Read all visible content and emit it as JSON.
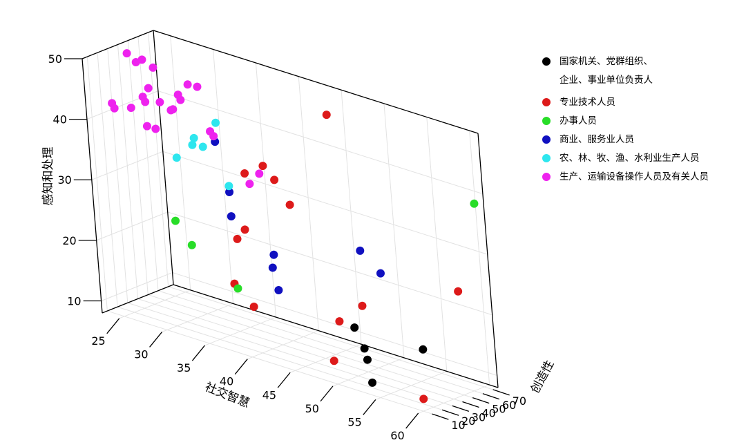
{
  "chart_data": {
    "type": "scatter3d",
    "xlabel": "社交智慧",
    "ylabel": "创造性",
    "zlabel": "感知和处理",
    "x_ticks": [
      25,
      30,
      35,
      40,
      45,
      50,
      55,
      60
    ],
    "y_ticks": [
      10,
      20,
      30,
      40,
      50,
      60,
      70
    ],
    "z_ticks": [
      10,
      20,
      30,
      40,
      50
    ],
    "xlim": [
      23,
      61
    ],
    "ylim": [
      5,
      75
    ],
    "zlim": [
      8,
      50
    ],
    "grid": true,
    "legend_position": "right",
    "series": [
      {
        "name": "国家机关、党群组织、企业、事业单位负责人",
        "name_lines": [
          "国家机关、党群组织、",
          "企业、事业单位负责人"
        ],
        "color": "#000000",
        "points": [
          {
            "x": 50,
            "y": 30,
            "z": 16
          },
          {
            "x": 51,
            "y": 30,
            "z": 13
          },
          {
            "x": 51,
            "y": 32,
            "z": 11
          },
          {
            "x": 52,
            "y": 27,
            "z": 8
          },
          {
            "x": 56,
            "y": 46,
            "z": 14
          }
        ]
      },
      {
        "name": "专业技术人员",
        "color": "#dd1a1a",
        "points": [
          {
            "x": 44,
            "y": 67,
            "z": 46
          },
          {
            "x": 38,
            "y": 50,
            "z": 36
          },
          {
            "x": 36,
            "y": 48,
            "z": 34
          },
          {
            "x": 39,
            "y": 52,
            "z": 34
          },
          {
            "x": 40,
            "y": 57,
            "z": 30
          },
          {
            "x": 35,
            "y": 52,
            "z": 24
          },
          {
            "x": 34,
            "y": 52,
            "z": 22
          },
          {
            "x": 35,
            "y": 38,
            "z": 16
          },
          {
            "x": 38,
            "y": 31,
            "z": 14
          },
          {
            "x": 49,
            "y": 47,
            "z": 18
          },
          {
            "x": 48,
            "y": 32,
            "z": 16
          },
          {
            "x": 49,
            "y": 16,
            "z": 11
          },
          {
            "x": 59,
            "y": 60,
            "z": 24
          },
          {
            "x": 58,
            "y": 27,
            "z": 8
          }
        ]
      },
      {
        "name": "办事人员",
        "color": "#28dd28",
        "points": [
          {
            "x": 27,
            "y": 50,
            "z": 22
          },
          {
            "x": 30,
            "y": 40,
            "z": 20
          },
          {
            "x": 36,
            "y": 33,
            "z": 16
          },
          {
            "x": 60,
            "y": 74,
            "z": 38
          }
        ]
      },
      {
        "name": "商业、服务业人员",
        "color": "#1010c0",
        "points": [
          {
            "x": 34,
            "y": 38,
            "z": 39
          },
          {
            "x": 35,
            "y": 40,
            "z": 31
          },
          {
            "x": 35,
            "y": 40,
            "z": 27
          },
          {
            "x": 41,
            "y": 30,
            "z": 24
          },
          {
            "x": 41,
            "y": 28,
            "z": 22
          },
          {
            "x": 42,
            "y": 24,
            "z": 19
          },
          {
            "x": 48,
            "y": 57,
            "z": 26
          },
          {
            "x": 51,
            "y": 51,
            "z": 24
          }
        ]
      },
      {
        "name": "农、林、牧、渔、水利业生产人员",
        "color": "#2ee6ee",
        "points": [
          {
            "x": 34,
            "y": 40,
            "z": 42
          },
          {
            "x": 31,
            "y": 42,
            "z": 38
          },
          {
            "x": 32,
            "y": 42,
            "z": 37
          },
          {
            "x": 31,
            "y": 40,
            "z": 37
          },
          {
            "x": 29,
            "y": 40,
            "z": 34
          },
          {
            "x": 35,
            "y": 40,
            "z": 32
          }
        ]
      },
      {
        "name": "生产、运输设备操作人员及有关人员",
        "color": "#ee22ee",
        "points": [
          {
            "x": 24,
            "y": 40,
            "z": 49
          },
          {
            "x": 25,
            "y": 46,
            "z": 48
          },
          {
            "x": 24,
            "y": 48,
            "z": 47
          },
          {
            "x": 30,
            "y": 48,
            "z": 46
          },
          {
            "x": 31,
            "y": 49,
            "z": 46
          },
          {
            "x": 26,
            "y": 48,
            "z": 47
          },
          {
            "x": 26,
            "y": 42,
            "z": 44
          },
          {
            "x": 29,
            "y": 46,
            "z": 44
          },
          {
            "x": 25,
            "y": 44,
            "z": 42
          },
          {
            "x": 27,
            "y": 44,
            "z": 42
          },
          {
            "x": 29,
            "y": 48,
            "z": 43
          },
          {
            "x": 28,
            "y": 46,
            "z": 41
          },
          {
            "x": 28,
            "y": 48,
            "z": 41
          },
          {
            "x": 26,
            "y": 38,
            "z": 42
          },
          {
            "x": 22,
            "y": 38,
            "z": 40
          },
          {
            "x": 23,
            "y": 32,
            "z": 40
          },
          {
            "x": 24,
            "y": 40,
            "z": 40
          },
          {
            "x": 26,
            "y": 38,
            "z": 38
          },
          {
            "x": 27,
            "y": 38,
            "z": 38
          },
          {
            "x": 33,
            "y": 42,
            "z": 40
          },
          {
            "x": 33,
            "y": 45,
            "z": 39
          },
          {
            "x": 36,
            "y": 52,
            "z": 32
          },
          {
            "x": 37,
            "y": 54,
            "z": 34
          }
        ]
      }
    ]
  }
}
